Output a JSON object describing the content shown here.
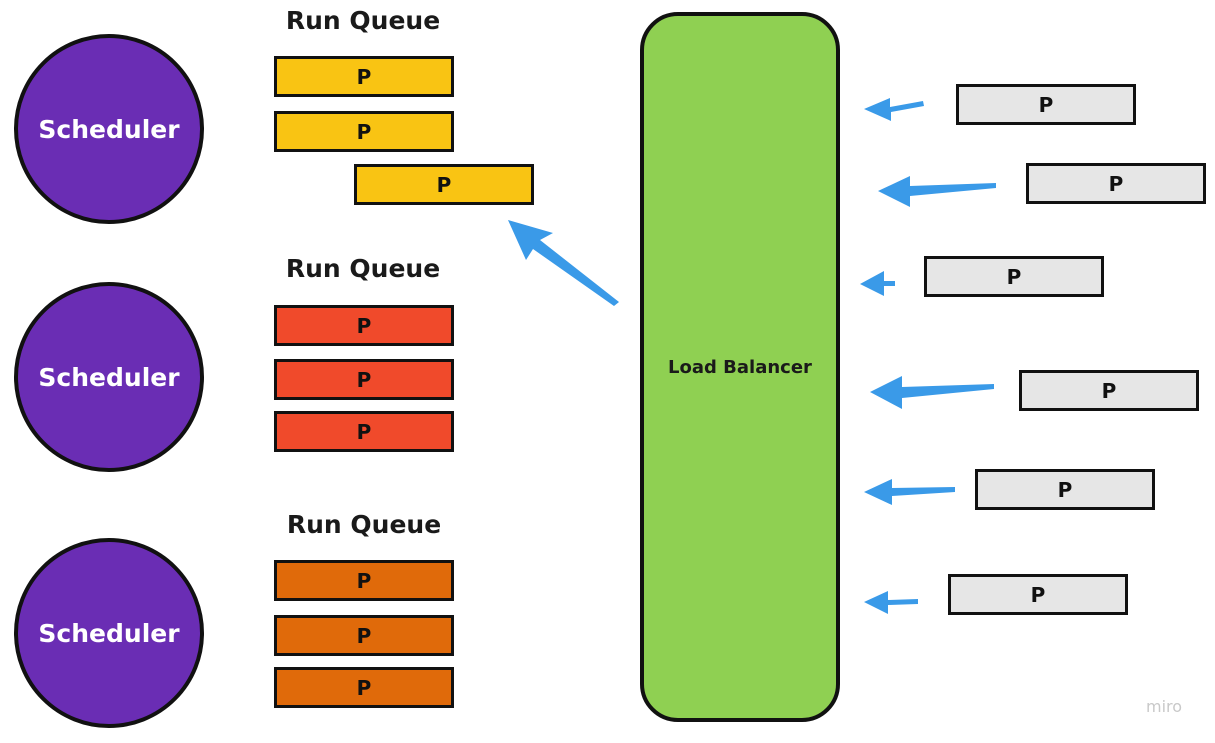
{
  "colors": {
    "scheduler": "#6a2db4",
    "queue_1": "#f9c413",
    "queue_2": "#f04a2b",
    "queue_3": "#e06a0a",
    "balancer": "#8fd052",
    "incoming": "#e6e6e6",
    "arrow": "#3a9ae8"
  },
  "schedulers": [
    {
      "label": "Scheduler"
    },
    {
      "label": "Scheduler"
    },
    {
      "label": "Scheduler"
    }
  ],
  "run_queues": [
    {
      "title": "Run Queue",
      "items": [
        "P",
        "P",
        "P"
      ]
    },
    {
      "title": "Run Queue",
      "items": [
        "P",
        "P",
        "P"
      ]
    },
    {
      "title": "Run Queue",
      "items": [
        "P",
        "P",
        "P"
      ]
    }
  ],
  "load_balancer": {
    "label": "Load Balancer"
  },
  "incoming_processes": [
    "P",
    "P",
    "P",
    "P",
    "P",
    "P"
  ],
  "watermark": "miro"
}
